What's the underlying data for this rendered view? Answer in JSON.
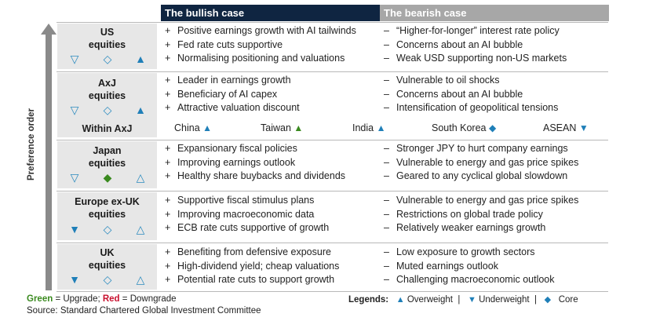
{
  "headers": {
    "bullish": "The bullish case",
    "bearish": "The bearish case"
  },
  "axis_label": "Preference order",
  "rows": [
    {
      "name": "US\nequities",
      "bull": [
        "Positive earnings growth with AI tailwinds",
        "Fed rate cuts supportive",
        "Normalising positioning and valuations"
      ],
      "bear": [
        "“Higher-for-longer” interest rate policy",
        "Concerns about an AI bubble",
        "Weak USD supporting non-US markets"
      ]
    },
    {
      "name": "AxJ\nequities",
      "bull": [
        "Leader in earnings growth",
        "Beneficiary of AI capex",
        "Attractive valuation discount"
      ],
      "bear": [
        "Vulnerable to oil shocks",
        "Concerns about an AI bubble",
        "Intensification of geopolitical tensions"
      ]
    },
    {
      "name": "Japan\nequities",
      "bull": [
        "Expansionary fiscal policies",
        "Improving earnings outlook",
        "Healthy share buybacks and dividends"
      ],
      "bear": [
        "Stronger JPY to hurt company earnings",
        "Vulnerable to energy and gas price spikes",
        "Geared to any cyclical global slowdown"
      ]
    },
    {
      "name": "Europe ex-UK\nequities",
      "bull": [
        "Supportive fiscal stimulus plans",
        "Improving macroeconomic data",
        "ECB rate cuts supportive of growth"
      ],
      "bear": [
        "Vulnerable to energy and gas price spikes",
        "Restrictions on global trade policy",
        "Relatively weaker earnings growth"
      ]
    },
    {
      "name": "UK\nequities",
      "bull": [
        "Benefiting from defensive exposure",
        "High-dividend yield; cheap valuations",
        "Potential rate cuts to support growth"
      ],
      "bear": [
        "Low exposure to growth sectors",
        "Muted earnings outlook",
        "Challenging macroeconomic outlook"
      ]
    }
  ],
  "within_axj": {
    "label": "Within AxJ",
    "markets": [
      {
        "name": "China",
        "icon": "overweight"
      },
      {
        "name": "Taiwan",
        "icon": "upgrade-overweight"
      },
      {
        "name": "India",
        "icon": "overweight"
      },
      {
        "name": "South Korea",
        "icon": "core"
      },
      {
        "name": "ASEAN",
        "icon": "underweight"
      }
    ]
  },
  "footer": {
    "green": "Green",
    "upgrade_text": " = Upgrade; ",
    "red": "Red",
    "downgrade_text": " = Downgrade",
    "source": "Source: Standard Chartered Global Investment Committee"
  },
  "legend": {
    "title": "Legends:",
    "overweight": "Overweight",
    "underweight": "Underweight",
    "core": "Core",
    "sep": "|"
  },
  "symbols": {
    "plus": "+",
    "minus": "–"
  },
  "colors": {
    "navy": "#0f2541",
    "blue_icon": "#1f7fb8",
    "green": "#3a8a1f",
    "red": "#c8102e",
    "grey_header": "#a7a7a7"
  }
}
